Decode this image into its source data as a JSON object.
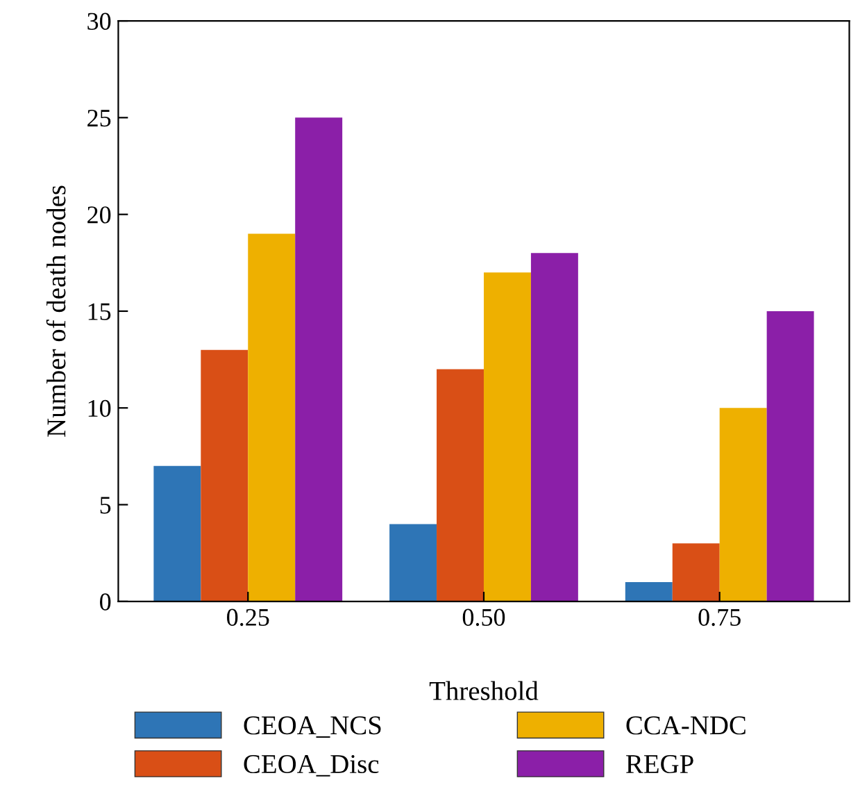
{
  "chart_data": {
    "type": "bar",
    "xlabel": "Threshold",
    "ylabel": "Number of death nodes",
    "categories": [
      "0.25",
      "0.50",
      "0.75"
    ],
    "series": [
      {
        "name": "CEOA_NCS",
        "color": "#2e75b6",
        "values": [
          7,
          4,
          1
        ]
      },
      {
        "name": "CEOA_Disc",
        "color": "#d94f16",
        "values": [
          13,
          12,
          3
        ]
      },
      {
        "name": "CCA-NDC",
        "color": "#eeb000",
        "values": [
          19,
          17,
          10
        ]
      },
      {
        "name": "REGP",
        "color": "#8b1fa8",
        "values": [
          25,
          18,
          15
        ]
      }
    ],
    "ylim": [
      0,
      30
    ],
    "yticks": [
      0,
      5,
      10,
      15,
      20,
      25,
      30
    ],
    "grid": false,
    "legend": "bottom"
  }
}
